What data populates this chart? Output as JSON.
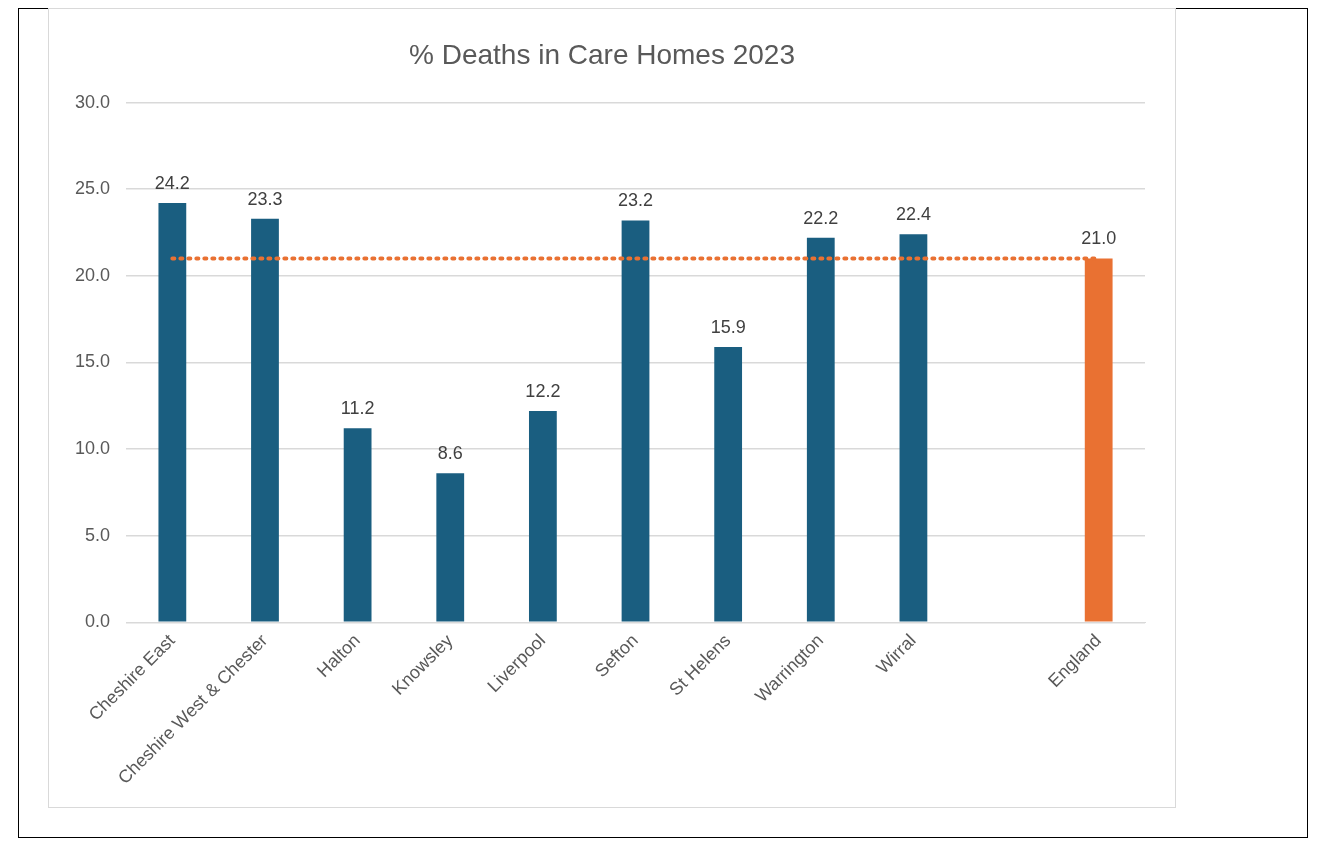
{
  "chart_data": {
    "type": "bar",
    "title": "% Deaths in Care Homes 2023",
    "categories": [
      "Cheshire East",
      "Cheshire West & Chester",
      "Halton",
      "Knowsley",
      "Liverpool",
      "Sefton",
      "St Helens",
      "Warrington",
      "Wirral",
      null,
      "England"
    ],
    "values": [
      24.2,
      23.3,
      11.2,
      8.6,
      12.2,
      23.2,
      15.9,
      22.2,
      22.4,
      null,
      21.0
    ],
    "value_labels": [
      "24.2",
      "23.3",
      "11.2",
      "8.6",
      "12.2",
      "23.2",
      "15.9",
      "22.2",
      "22.4",
      null,
      "21.0"
    ],
    "colors": [
      "#1a5e80",
      "#1a5e80",
      "#1a5e80",
      "#1a5e80",
      "#1a5e80",
      "#1a5e80",
      "#1a5e80",
      "#1a5e80",
      "#1a5e80",
      "#1a5e80",
      "#e97132"
    ],
    "ylim": [
      0,
      30
    ],
    "yticks": [
      {
        "value": 0,
        "label": "0.0"
      },
      {
        "value": 5,
        "label": "5.0"
      },
      {
        "value": 10,
        "label": "10.0"
      },
      {
        "value": 15,
        "label": "15.0"
      },
      {
        "value": 20,
        "label": "20.0"
      },
      {
        "value": 25,
        "label": "25.0"
      },
      {
        "value": 30,
        "label": "30.0"
      }
    ],
    "ref_lines": [
      {
        "axis": "y",
        "value": 21.0,
        "color": "#e97132",
        "line_style": "dotted"
      }
    ],
    "grid": "y",
    "legend": false
  }
}
